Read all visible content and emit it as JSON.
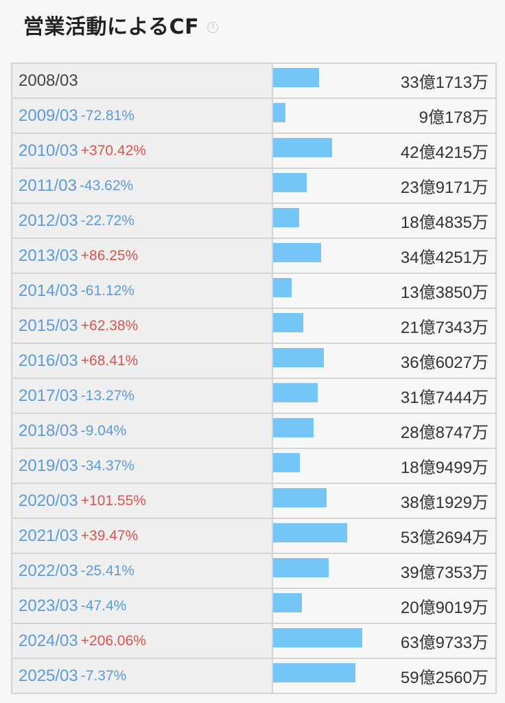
{
  "title": "営業活動によるCF",
  "help_icon": "question-circle-icon",
  "colors": {
    "bar": "#75c5f7",
    "negative_change": "#5a9bd8",
    "positive_change": "#d9534f"
  },
  "rows": [
    {
      "year": "2008/03",
      "change": "",
      "amount": "33億1713万",
      "value": 331713
    },
    {
      "year": "2009/03",
      "change": "-72.81%",
      "amount": "9億178万",
      "value": 90178
    },
    {
      "year": "2010/03",
      "change": "+370.42%",
      "amount": "42億4215万",
      "value": 424215
    },
    {
      "year": "2011/03",
      "change": "-43.62%",
      "amount": "23億9171万",
      "value": 239171
    },
    {
      "year": "2012/03",
      "change": "-22.72%",
      "amount": "18億4835万",
      "value": 184835
    },
    {
      "year": "2013/03",
      "change": "+86.25%",
      "amount": "34億4251万",
      "value": 344251
    },
    {
      "year": "2014/03",
      "change": "-61.12%",
      "amount": "13億3850万",
      "value": 133850
    },
    {
      "year": "2015/03",
      "change": "+62.38%",
      "amount": "21億7343万",
      "value": 217343
    },
    {
      "year": "2016/03",
      "change": "+68.41%",
      "amount": "36億6027万",
      "value": 366027
    },
    {
      "year": "2017/03",
      "change": "-13.27%",
      "amount": "31億7444万",
      "value": 317444
    },
    {
      "year": "2018/03",
      "change": "-9.04%",
      "amount": "28億8747万",
      "value": 288747
    },
    {
      "year": "2019/03",
      "change": "-34.37%",
      "amount": "18億9499万",
      "value": 189499
    },
    {
      "year": "2020/03",
      "change": "+101.55%",
      "amount": "38億1929万",
      "value": 381929
    },
    {
      "year": "2021/03",
      "change": "+39.47%",
      "amount": "53億2694万",
      "value": 532694
    },
    {
      "year": "2022/03",
      "change": "-25.41%",
      "amount": "39億7353万",
      "value": 397353
    },
    {
      "year": "2023/03",
      "change": "-47.4%",
      "amount": "20億9019万",
      "value": 209019
    },
    {
      "year": "2024/03",
      "change": "+206.06%",
      "amount": "63億9733万",
      "value": 639733
    },
    {
      "year": "2025/03",
      "change": "-7.37%",
      "amount": "59億2560万",
      "value": 592560
    }
  ]
}
